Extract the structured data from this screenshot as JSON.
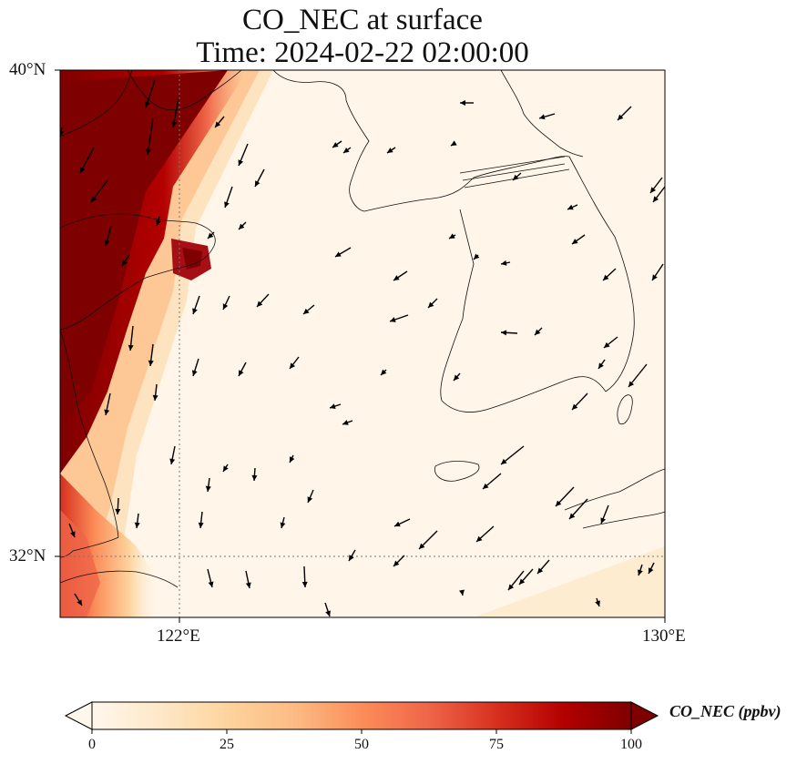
{
  "title": {
    "line1": "CO_NEC at surface",
    "line2": "Time: 2024-02-22 02:00:00"
  },
  "map": {
    "extent": {
      "lon_min": 120,
      "lon_max": 130,
      "lat_min": 31,
      "lat_max": 40
    },
    "lat_ticks": [
      {
        "value": 40,
        "label": "40°N"
      },
      {
        "value": 32,
        "label": "32°N"
      }
    ],
    "lon_ticks": [
      {
        "value": 122,
        "label": "122°E"
      },
      {
        "value": 130,
        "label": "130°E"
      }
    ],
    "gridlines": "dotted at 122°E and 32°N",
    "colormap": "OrRd"
  },
  "colorbar": {
    "label": "CO_NEC (ppbv)",
    "min": 0,
    "max": 100,
    "ticks": [
      "0",
      "25",
      "50",
      "75",
      "100"
    ],
    "extend": "both",
    "colors": [
      "#fff7ec",
      "#fee8c8",
      "#fdd49e",
      "#fdbb84",
      "#fc8d59",
      "#ef6548",
      "#d7301f",
      "#b30000",
      "#7f0000"
    ]
  }
}
